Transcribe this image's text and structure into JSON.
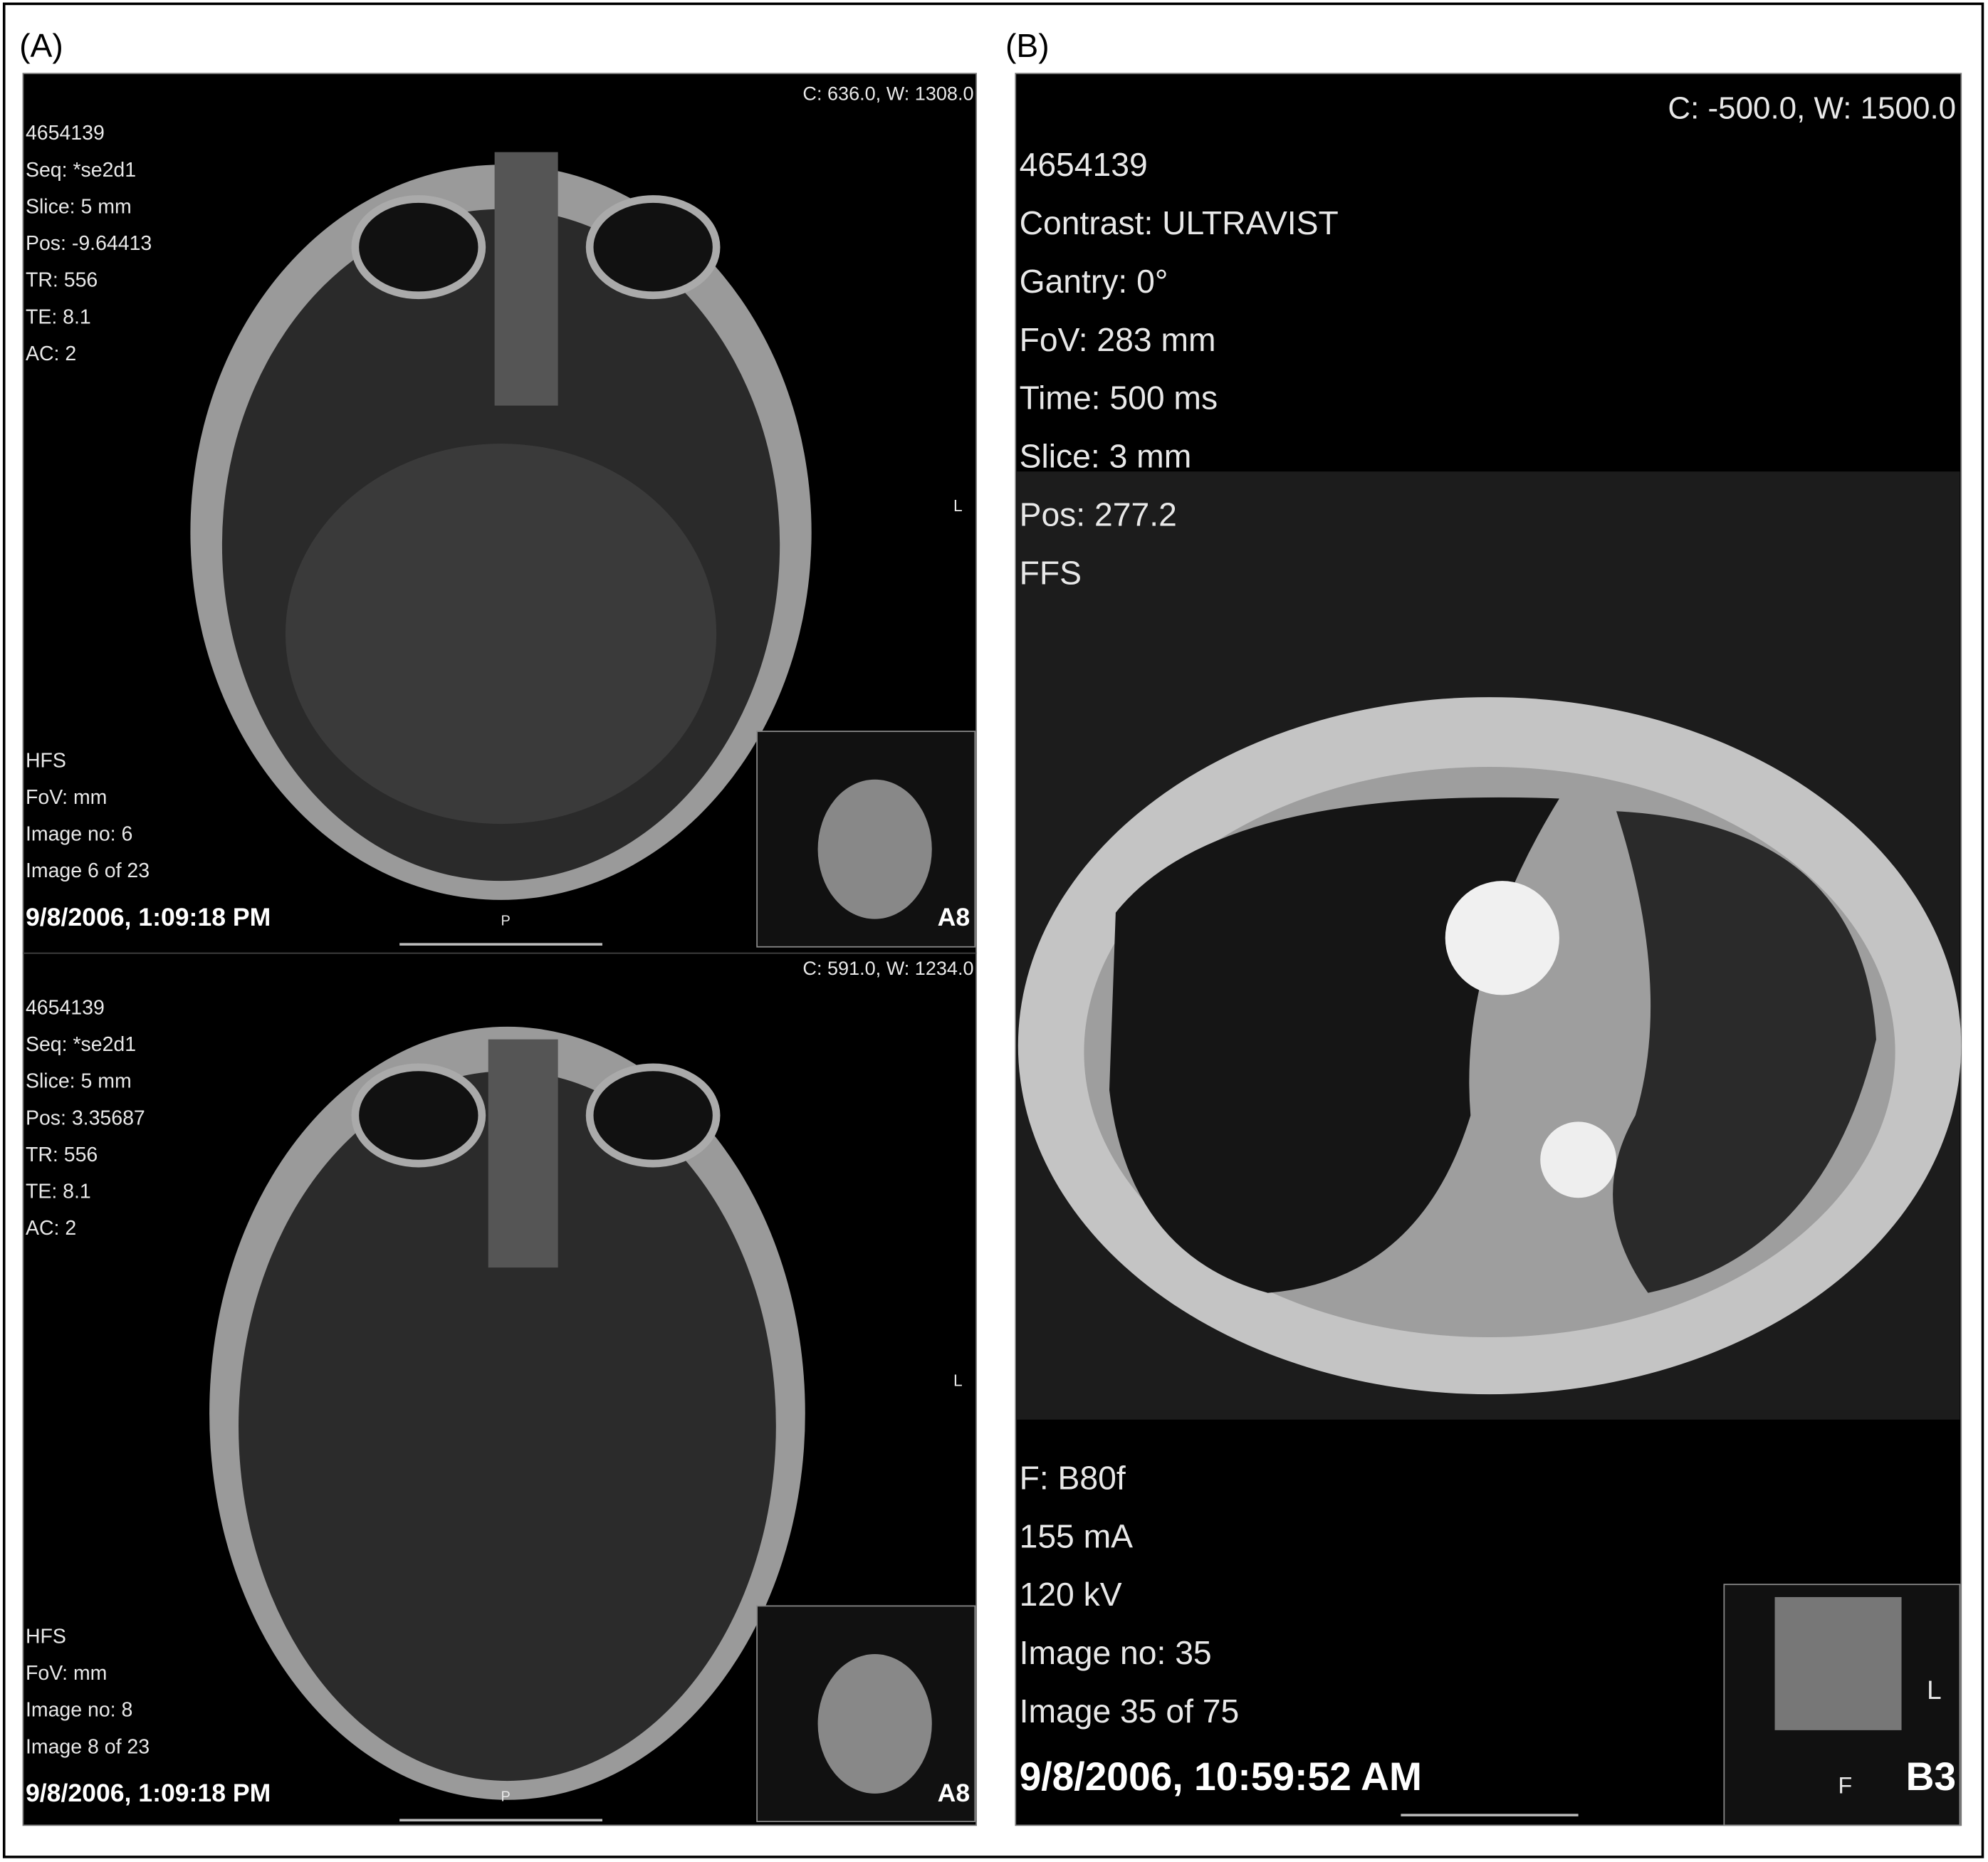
{
  "panels": [
    {
      "label": "(A)",
      "images": [
        {
          "window": "C: 636.0, W: 1308.0",
          "info_top": [
            "4654139",
            "Seq: *se2d1",
            "Slice: 5 mm",
            "Pos: -9.64413",
            "TR: 556",
            "TE: 8.1",
            "AC: 2"
          ],
          "info_bottom": [
            "HFS",
            "FoV: mm",
            "Image no: 6",
            "Image 6 of 23"
          ],
          "timestamp": "9/8/2006, 1:09:18 PM",
          "orientation": "L",
          "direction": "P",
          "series": "A8"
        },
        {
          "window": "C: 591.0, W: 1234.0",
          "info_top": [
            "4654139",
            "Seq: *se2d1",
            "Slice: 5 mm",
            "Pos: 3.35687",
            "TR: 556",
            "TE: 8.1",
            "AC: 2"
          ],
          "info_bottom": [
            "HFS",
            "FoV: mm",
            "Image no: 8",
            "Image 8 of 23"
          ],
          "timestamp": "9/8/2006, 1:09:18 PM",
          "orientation": "L",
          "direction": "P",
          "series": "A8"
        }
      ]
    },
    {
      "label": "(B)",
      "images": [
        {
          "window": "C: -500.0, W: 1500.0",
          "info_top": [
            "4654139",
            "Contrast: ULTRAVIST",
            "Gantry: 0°",
            "FoV: 283 mm",
            "Time: 500 ms",
            "Slice: 3 mm",
            "Pos: 277.2",
            "FFS"
          ],
          "info_bottom": [
            "F: B80f",
            "155 mA",
            "120 kV",
            "Image no: 35",
            "Image 35 of 75"
          ],
          "timestamp": "9/8/2006, 10:59:52 AM",
          "orientation": "L",
          "direction": "F",
          "series": "B3"
        }
      ]
    }
  ]
}
